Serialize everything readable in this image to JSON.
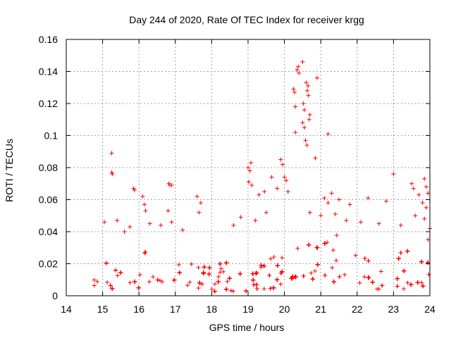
{
  "chart_data": {
    "type": "scatter",
    "title": "Day 244 of 2020, Rate Of TEC Index for receiver krgg",
    "xlabel": "GPS time / hours",
    "ylabel": "ROTI / TECUs",
    "xlim": [
      14,
      24
    ],
    "ylim": [
      0,
      0.16
    ],
    "x_ticks": [
      "14",
      "15",
      "16",
      "17",
      "18",
      "19",
      "20",
      "21",
      "22",
      "23",
      "24"
    ],
    "y_ticks": [
      "0",
      "0.02",
      "0.04",
      "0.06",
      "0.08",
      "0.1",
      "0.12",
      "0.14",
      "0.16"
    ],
    "grid": true,
    "marker": "+",
    "color": "#ff0000",
    "series": [
      {
        "points": [
          [
            15.25,
            0.089
          ],
          [
            15.25,
            0.077
          ],
          [
            15.27,
            0.076
          ],
          [
            15.85,
            0.067
          ],
          [
            15.88,
            0.066
          ],
          [
            16.1,
            0.062
          ],
          [
            16.15,
            0.057
          ],
          [
            16.18,
            0.053
          ],
          [
            16.82,
            0.07
          ],
          [
            16.85,
            0.069
          ],
          [
            16.9,
            0.069
          ],
          [
            16.8,
            0.053
          ],
          [
            17.6,
            0.062
          ],
          [
            17.7,
            0.058
          ],
          [
            17.65,
            0.052
          ],
          [
            19.0,
            0.08
          ],
          [
            19.05,
            0.078
          ],
          [
            19.08,
            0.083
          ],
          [
            19.02,
            0.071
          ],
          [
            19.1,
            0.069
          ],
          [
            19.3,
            0.063
          ],
          [
            19.45,
            0.065
          ],
          [
            19.65,
            0.074
          ],
          [
            19.8,
            0.067
          ],
          [
            19.9,
            0.085
          ],
          [
            19.95,
            0.082
          ],
          [
            20.0,
            0.074
          ],
          [
            20.05,
            0.072
          ],
          [
            20.1,
            0.065
          ],
          [
            20.25,
            0.129
          ],
          [
            20.28,
            0.127
          ],
          [
            20.3,
            0.118
          ],
          [
            20.35,
            0.141
          ],
          [
            20.38,
            0.143
          ],
          [
            20.4,
            0.139
          ],
          [
            20.5,
            0.146
          ],
          [
            20.52,
            0.12
          ],
          [
            20.55,
            0.116
          ],
          [
            20.5,
            0.108
          ],
          [
            20.55,
            0.105
          ],
          [
            20.6,
            0.133
          ],
          [
            20.63,
            0.128
          ],
          [
            20.65,
            0.131
          ],
          [
            20.66,
            0.125
          ],
          [
            20.58,
            0.097
          ],
          [
            20.62,
            0.094
          ],
          [
            20.68,
            0.11
          ],
          [
            20.7,
            0.113
          ],
          [
            20.3,
            0.102
          ],
          [
            20.9,
            0.136
          ],
          [
            20.85,
            0.086
          ],
          [
            21.2,
            0.101
          ],
          [
            21.1,
            0.061
          ],
          [
            21.2,
            0.058
          ],
          [
            21.3,
            0.064
          ],
          [
            21.5,
            0.06
          ],
          [
            21.8,
            0.057
          ],
          [
            22.3,
            0.061
          ],
          [
            22.8,
            0.059
          ],
          [
            23.0,
            0.076
          ],
          [
            23.5,
            0.07
          ],
          [
            23.55,
            0.067
          ],
          [
            23.7,
            0.063
          ],
          [
            23.85,
            0.073
          ],
          [
            23.9,
            0.068
          ],
          [
            23.95,
            0.064
          ],
          [
            23.8,
            0.058
          ],
          [
            23.9,
            0.055
          ],
          [
            23.85,
            0.048
          ],
          [
            24.0,
            0.042
          ],
          [
            23.95,
            0.035
          ],
          [
            15.05,
            0.046
          ],
          [
            15.4,
            0.047
          ],
          [
            15.6,
            0.04
          ],
          [
            15.75,
            0.043
          ],
          [
            16.3,
            0.045
          ],
          [
            16.6,
            0.044
          ],
          [
            16.9,
            0.046
          ],
          [
            17.2,
            0.041
          ],
          [
            18.6,
            0.044
          ],
          [
            18.8,
            0.049
          ],
          [
            19.2,
            0.047
          ],
          [
            19.5,
            0.052
          ],
          [
            20.7,
            0.052
          ],
          [
            21.0,
            0.05
          ],
          [
            21.4,
            0.051
          ],
          [
            21.7,
            0.047
          ],
          [
            22.1,
            0.046
          ],
          [
            22.6,
            0.045
          ],
          [
            23.2,
            0.044
          ],
          [
            23.6,
            0.05
          ]
        ]
      }
    ]
  }
}
